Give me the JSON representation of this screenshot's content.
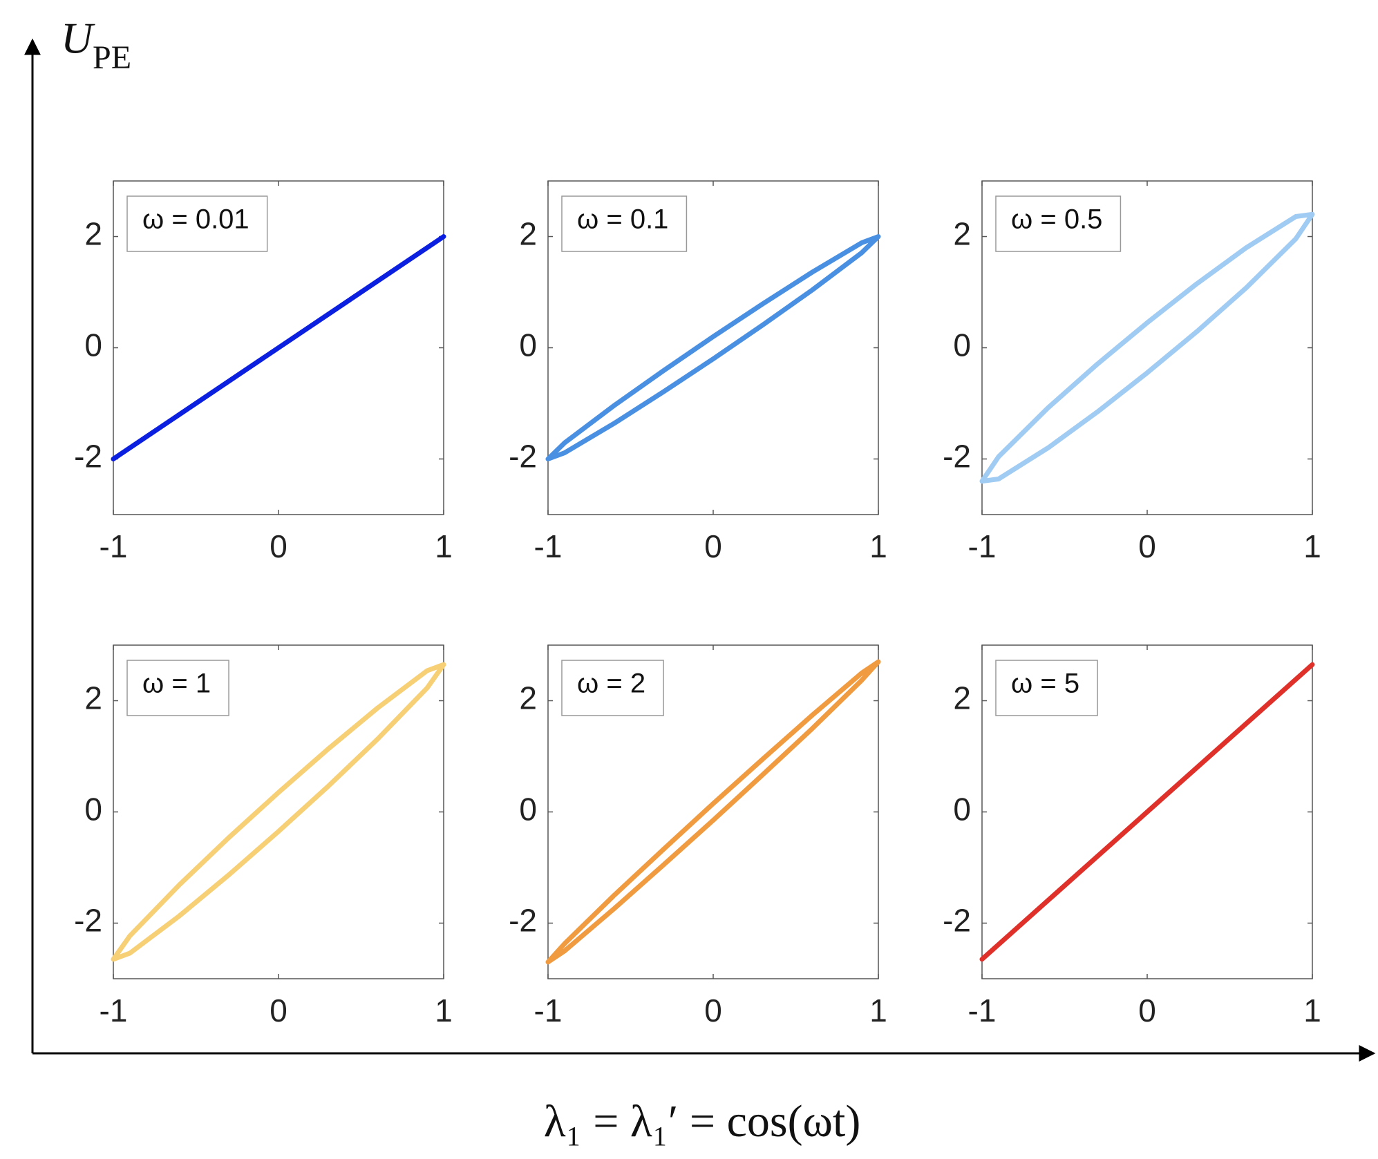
{
  "figure": {
    "y_label": "U",
    "y_label_subscript": "PE",
    "x_label": "λ₁ = λ₁′ = cos(ωt)"
  },
  "chart_data": [
    {
      "type": "line",
      "xlim": [
        -1,
        1
      ],
      "ylim": [
        -3,
        3
      ],
      "xticks": [
        -1,
        0,
        1
      ],
      "yticks": [
        -2,
        0,
        2
      ],
      "series": [
        {
          "name": "ω = 0.01",
          "color": "#0b1fe0",
          "x": [
            -1,
            0,
            1
          ],
          "values": [
            -2,
            0,
            2
          ]
        }
      ]
    },
    {
      "type": "line",
      "xlim": [
        -1,
        1
      ],
      "ylim": [
        -3,
        3
      ],
      "xticks": [
        -1,
        0,
        1
      ],
      "yticks": [
        -2,
        0,
        2
      ],
      "series": [
        {
          "name": "ω = 0.1",
          "color": "#4a90e2",
          "x": [
            -1,
            -0.9,
            -0.6,
            -0.3,
            0,
            0.3,
            0.6,
            0.9,
            1,
            0.9,
            0.6,
            0.3,
            0,
            -0.3,
            -0.6,
            -0.9,
            -1
          ],
          "values": [
            -2,
            -1.71,
            -1.04,
            -0.41,
            0.2,
            0.79,
            1.36,
            1.89,
            2,
            1.71,
            1.04,
            0.41,
            -0.2,
            -0.79,
            -1.36,
            -1.89,
            -2
          ]
        }
      ]
    },
    {
      "type": "line",
      "xlim": [
        -1,
        1
      ],
      "ylim": [
        -3,
        3
      ],
      "xticks": [
        -1,
        0,
        1
      ],
      "yticks": [
        -2,
        0,
        2
      ],
      "series": [
        {
          "name": "ω = 0.5",
          "color": "#a0cbf3",
          "x": [
            -1,
            -0.9,
            -0.6,
            -0.3,
            0,
            0.3,
            0.6,
            0.9,
            1,
            0.9,
            0.6,
            0.3,
            0,
            -0.3,
            -0.6,
            -0.9,
            -1
          ],
          "values": [
            -2.4,
            -1.96,
            -1.08,
            -0.29,
            0.45,
            1.15,
            1.8,
            2.36,
            2.4,
            1.96,
            1.08,
            0.29,
            -0.45,
            -1.15,
            -1.8,
            -2.36,
            -2.4
          ]
        }
      ]
    },
    {
      "type": "line",
      "xlim": [
        -1,
        1
      ],
      "ylim": [
        -3,
        3
      ],
      "xticks": [
        -1,
        0,
        1
      ],
      "yticks": [
        -2,
        0,
        2
      ],
      "series": [
        {
          "name": "ω = 1",
          "color": "#f7cf74",
          "x": [
            -1,
            -0.9,
            -0.6,
            -0.3,
            0,
            0.3,
            0.6,
            0.9,
            1,
            0.9,
            0.6,
            0.3,
            0,
            -0.3,
            -0.6,
            -0.9,
            -1
          ],
          "values": [
            -2.65,
            -2.23,
            -1.31,
            -0.46,
            0.35,
            1.13,
            1.87,
            2.54,
            2.65,
            2.23,
            1.31,
            0.46,
            -0.35,
            -1.13,
            -1.87,
            -2.54,
            -2.65
          ]
        }
      ]
    },
    {
      "type": "line",
      "xlim": [
        -1,
        1
      ],
      "ylim": [
        -3,
        3
      ],
      "xticks": [
        -1,
        0,
        1
      ],
      "yticks": [
        -2,
        0,
        2
      ],
      "series": [
        {
          "name": "ω = 2",
          "color": "#f09b40",
          "x": [
            -1,
            -0.9,
            -0.6,
            -0.3,
            0,
            0.3,
            0.6,
            0.9,
            1,
            0.9,
            0.6,
            0.3,
            0,
            -0.3,
            -0.6,
            -0.9,
            -1
          ],
          "values": [
            -2.7,
            -2.37,
            -1.5,
            -0.67,
            0.15,
            0.95,
            1.74,
            2.5,
            2.7,
            2.37,
            1.5,
            0.67,
            -0.15,
            -0.95,
            -1.74,
            -2.5,
            -2.7
          ]
        }
      ]
    },
    {
      "type": "line",
      "xlim": [
        -1,
        1
      ],
      "ylim": [
        -3,
        3
      ],
      "xticks": [
        -1,
        0,
        1
      ],
      "yticks": [
        -2,
        0,
        2
      ],
      "series": [
        {
          "name": "ω = 5",
          "color": "#e0302a",
          "x": [
            -1,
            0,
            1
          ],
          "values": [
            -2.65,
            0,
            2.65
          ]
        }
      ]
    }
  ]
}
